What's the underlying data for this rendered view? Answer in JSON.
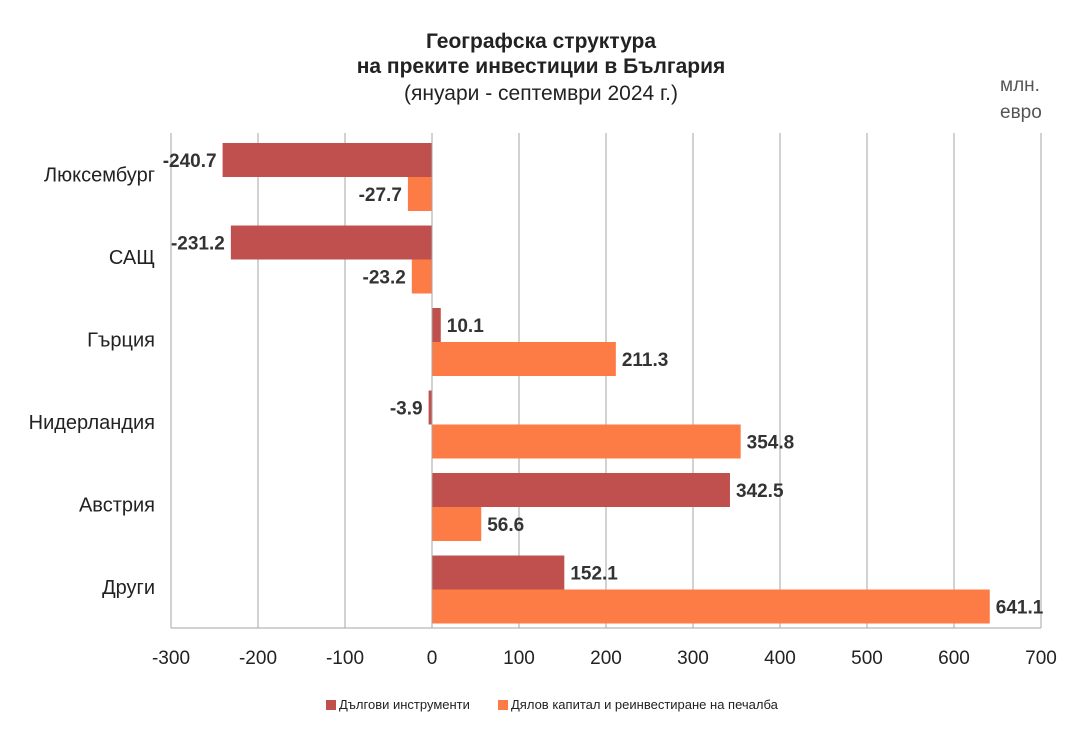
{
  "chart_data": {
    "type": "bar",
    "orientation": "horizontal",
    "title": [
      "Географска структура",
      "на преките инвестиции в България",
      "(януари - септември 2024 г.)"
    ],
    "unit_label": [
      "млн.",
      "евро"
    ],
    "categories": [
      "Люксембург",
      "САЩ",
      "Гърция",
      "Нидерландия",
      "Австрия",
      "Други"
    ],
    "series": [
      {
        "name": "Дългови инструменти",
        "color": "#c0504d",
        "values": [
          -240.7,
          -231.2,
          10.1,
          -3.9,
          342.5,
          152.1
        ],
        "labels": [
          "-240.7",
          "-231.2",
          "10.1",
          "-3.9",
          "342.5",
          "152.1"
        ]
      },
      {
        "name": "Дялов капитал и реинвестиране на печалба",
        "color": "#fd7b45",
        "values": [
          -27.7,
          -23.2,
          211.3,
          354.8,
          56.6,
          641.1
        ],
        "labels": [
          "-27.7",
          "-23.2",
          "211.3",
          "354.8",
          "56.6",
          "641.1"
        ]
      }
    ],
    "xlim": [
      -300,
      700
    ],
    "xticks": [
      "-300",
      "-200",
      "-100",
      "0",
      "100",
      "200",
      "300",
      "400",
      "500",
      "600",
      "700"
    ],
    "grid": true,
    "legend": "bottom"
  }
}
